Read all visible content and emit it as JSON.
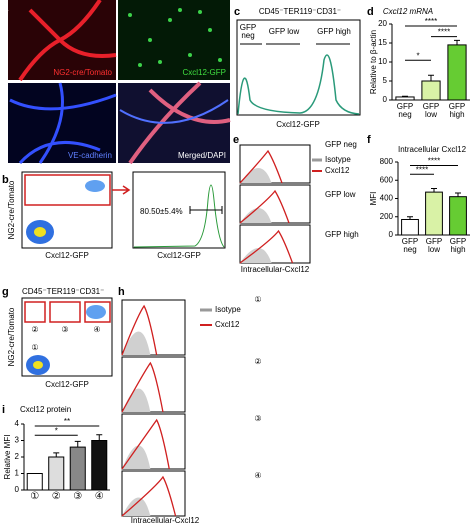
{
  "panels": {
    "a": {
      "label": "a",
      "captions": [
        "NG2-cre/Tomato",
        "Cxcl12-GFP",
        "VE-cadherin",
        "Merged/DAPI"
      ]
    },
    "b": {
      "label": "b",
      "ylabel": "NG2-cre/Tomato",
      "xlabels": [
        "Cxcl12-GFP",
        "Cxcl12-GFP"
      ],
      "annotation": "80.50±5.4%"
    },
    "c": {
      "label": "c",
      "title": "CD45⁻TER119⁻CD31⁻",
      "gates": [
        "GFP neg",
        "GFP low",
        "GFP high"
      ],
      "xlabel": "Cxcl12-GFP"
    },
    "e": {
      "label": "e",
      "rows": [
        "GFP neg",
        "GFP low",
        "GFP high"
      ],
      "legend": [
        "Isotype",
        "Cxcl12"
      ],
      "xlabel": "Intracellular-Cxcl12"
    },
    "g": {
      "label": "g",
      "title": "CD45⁻TER119⁻CD31⁻",
      "ylabel": "NG2-cre/Tomato",
      "xlabel": "Cxcl12-GFP",
      "gates": [
        "①",
        "②",
        "③",
        "④"
      ]
    },
    "h": {
      "label": "h",
      "rows": [
        "①",
        "②",
        "③",
        "④"
      ],
      "legend": [
        "Isotype",
        "Cxcl12"
      ],
      "xlabel": "Intracellular-Cxcl12"
    }
  },
  "chart_data": [
    {
      "label": "d",
      "type": "bar",
      "title": "Cxcl12 mRNA",
      "ylabel": "Relative to β-actin",
      "categories": [
        "GFP neg",
        "GFP low",
        "GFP high"
      ],
      "values": [
        0.8,
        5,
        14.5
      ],
      "errors": [
        0.2,
        1.5,
        1.2
      ],
      "colors": [
        "#ffffff",
        "#d9f2a6",
        "#66cc33"
      ],
      "ylim": [
        0,
        20
      ],
      "yticks": [
        0,
        5,
        10,
        15,
        20
      ],
      "annotations": [
        "*",
        "****",
        "****"
      ]
    },
    {
      "label": "f",
      "type": "bar",
      "title": "Intracellular Cxcl12",
      "ylabel": "MFI",
      "categories": [
        "GFP neg",
        "GFP low",
        "GFP high"
      ],
      "values": [
        170,
        470,
        420
      ],
      "errors": [
        30,
        40,
        40
      ],
      "colors": [
        "#ffffff",
        "#d9f2a6",
        "#66cc33"
      ],
      "ylim": [
        0,
        800
      ],
      "yticks": [
        0,
        200,
        400,
        600,
        800
      ],
      "annotations": [
        "****",
        "****"
      ]
    },
    {
      "label": "i",
      "type": "bar",
      "title": "Cxcl12 protein",
      "ylabel": "Relative MFI",
      "categories": [
        "①",
        "②",
        "③",
        "④"
      ],
      "values": [
        1,
        2.0,
        2.6,
        3.0
      ],
      "errors": [
        0,
        0.25,
        0.35,
        0.35
      ],
      "colors": [
        "#ffffff",
        "#dddddd",
        "#888888",
        "#111111"
      ],
      "ylim": [
        0,
        4
      ],
      "yticks": [
        0,
        1,
        2,
        3,
        4
      ],
      "annotations": [
        "**",
        "*"
      ]
    }
  ]
}
